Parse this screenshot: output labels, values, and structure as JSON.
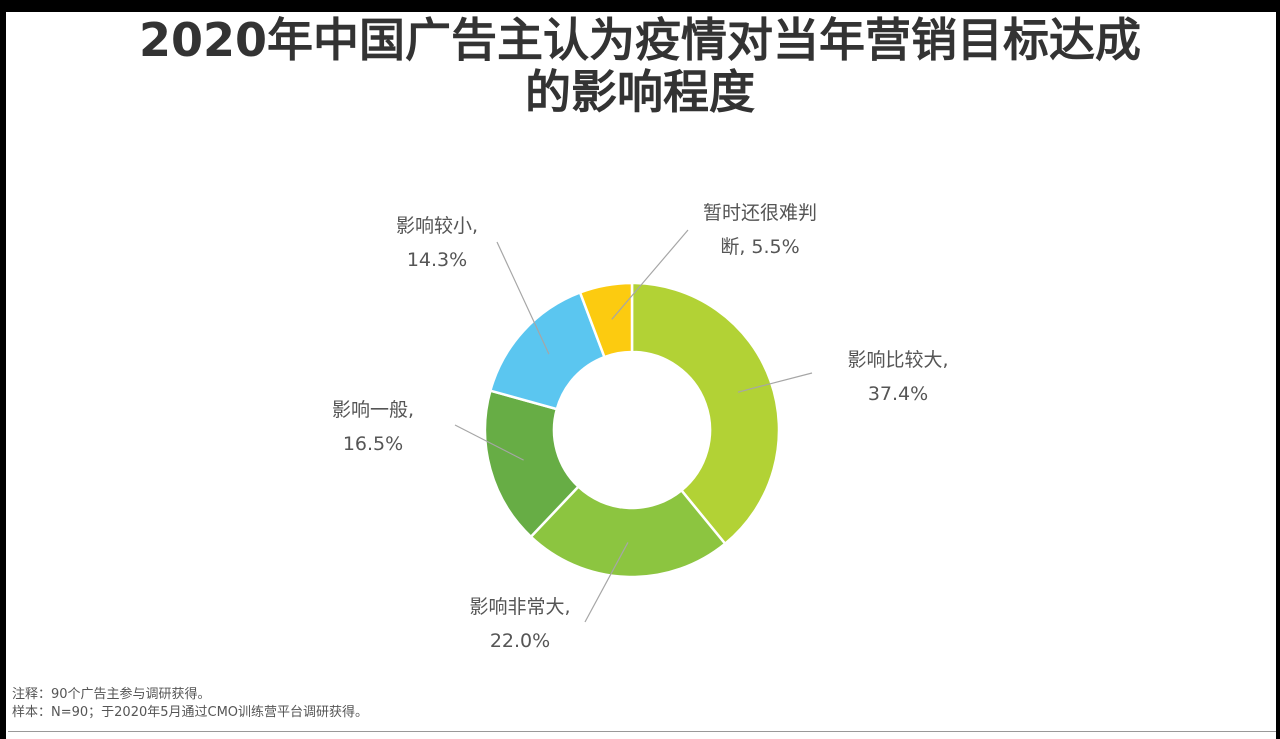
{
  "title_lines": [
    "2020年中国广告主认为疫情对当年营销目标达成",
    "的影响程度"
  ],
  "notes": {
    "note": "注释：90个广告主参与调研获得。",
    "sample": "样本：N=90；于2020年5月通过CMO训练营平台调研获得。"
  },
  "chart_data": {
    "type": "pie",
    "title": "2020年中国广告主认为疫情对当年营销目标达成的影响程度",
    "donut": true,
    "slices": [
      {
        "label_lines": [
          "影响比较大,",
          "37.4%"
        ],
        "value": 37.4,
        "color": "#b2d235"
      },
      {
        "label_lines": [
          "影响非常大,",
          "22.0%"
        ],
        "value": 22.0,
        "color": "#8cc540"
      },
      {
        "label_lines": [
          "影响一般,",
          "16.5%"
        ],
        "value": 16.5,
        "color": "#67ad45"
      },
      {
        "label_lines": [
          "影响较小,",
          "14.3%"
        ],
        "value": 14.3,
        "color": "#5bc6f0"
      },
      {
        "label_lines": [
          "暂时还很难判",
          "断, 5.5%"
        ],
        "value": 5.5,
        "color": "#fccb10"
      }
    ]
  }
}
